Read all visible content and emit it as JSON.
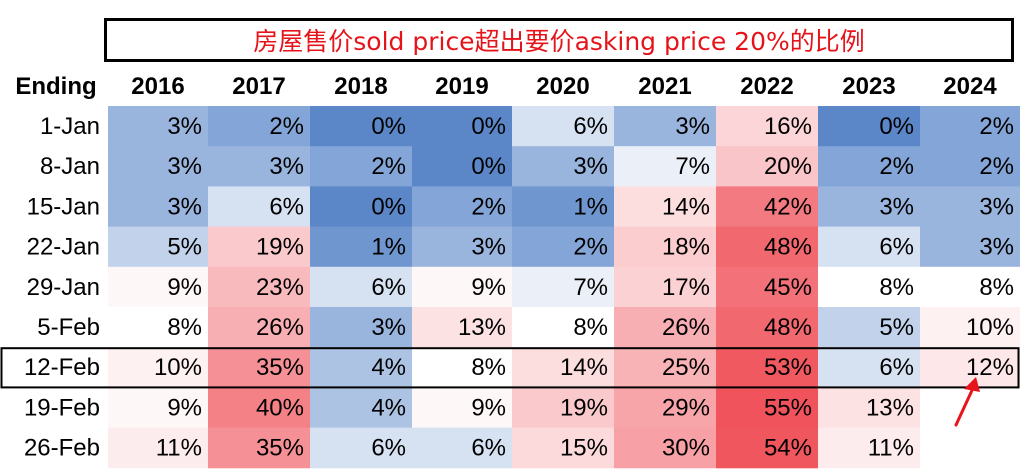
{
  "chart_data": {
    "type": "heatmap",
    "title": "房屋售价sold price超出要价asking price 20%的比例",
    "row_header": "Ending",
    "columns": [
      "2016",
      "2017",
      "2018",
      "2019",
      "2020",
      "2021",
      "2022",
      "2023",
      "2024"
    ],
    "rows": [
      "1-Jan",
      "8-Jan",
      "15-Jan",
      "22-Jan",
      "29-Jan",
      "5-Feb",
      "12-Feb",
      "19-Feb",
      "26-Feb"
    ],
    "values": [
      [
        3,
        2,
        0,
        0,
        6,
        3,
        16,
        0,
        2
      ],
      [
        3,
        3,
        2,
        0,
        3,
        7,
        20,
        2,
        2
      ],
      [
        3,
        6,
        0,
        2,
        1,
        14,
        42,
        3,
        3
      ],
      [
        5,
        19,
        1,
        3,
        2,
        18,
        48,
        6,
        3
      ],
      [
        9,
        23,
        6,
        9,
        7,
        17,
        45,
        8,
        8
      ],
      [
        8,
        26,
        3,
        13,
        8,
        26,
        48,
        5,
        10
      ],
      [
        10,
        35,
        4,
        8,
        14,
        25,
        53,
        6,
        12
      ],
      [
        9,
        40,
        4,
        9,
        19,
        29,
        55,
        13,
        null
      ],
      [
        11,
        35,
        6,
        6,
        15,
        30,
        54,
        11,
        null
      ]
    ],
    "value_suffix": "%",
    "highlighted_row": "12-Feb",
    "annotation": {
      "type": "red-arrow",
      "points_to": "12-Feb / 2024"
    },
    "colors": {
      "low": "#5b87c9",
      "mid": "#ffffff",
      "high": "#f0535b",
      "title_text": "#e5141b",
      "arrow": "#e8141b"
    }
  }
}
